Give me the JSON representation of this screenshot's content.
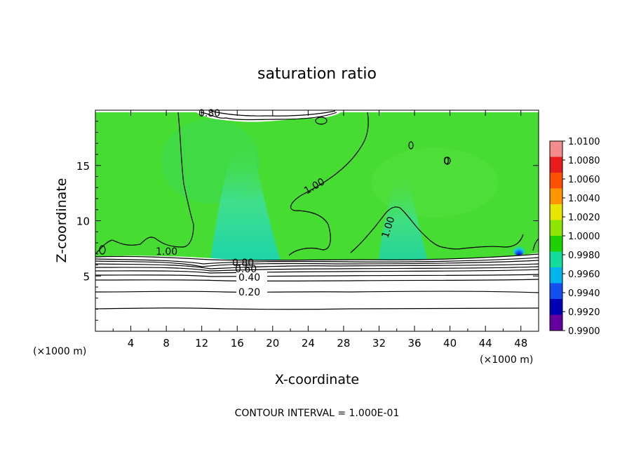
{
  "chart_data": {
    "type": "contour",
    "title": "saturation ratio",
    "xlabel": "X-coordinate",
    "ylabel": "Z-coordinate",
    "x_units": "(×1000 m)",
    "x_units_right": "(×1000 m)",
    "xlim": [
      0,
      50
    ],
    "ylim": [
      0,
      20
    ],
    "x_ticks": [
      4,
      8,
      12,
      16,
      20,
      24,
      28,
      32,
      36,
      40,
      44,
      48
    ],
    "y_ticks": [
      5,
      10,
      15
    ],
    "colorbar": {
      "labels": [
        "1.0100",
        "1.0080",
        "1.0060",
        "1.0040",
        "1.0020",
        "1.0000",
        "0.9980",
        "0.9960",
        "0.9940",
        "0.9920",
        "0.9900"
      ],
      "colors": [
        "#f48c8c",
        "#e81c1c",
        "#ff5000",
        "#ff9600",
        "#e6e600",
        "#8ce600",
        "#1ed200",
        "#14dc9a",
        "#00b4f0",
        "#1450f0",
        "#0000b4",
        "#6400a0"
      ]
    },
    "contour_labels": [
      "0.20",
      "0.40",
      "0.60",
      "0.80",
      "1.00",
      "1.00",
      "1.00",
      "0.80",
      "0"
    ],
    "footer": "CONTOUR INTERVAL = 1.000E-01"
  }
}
